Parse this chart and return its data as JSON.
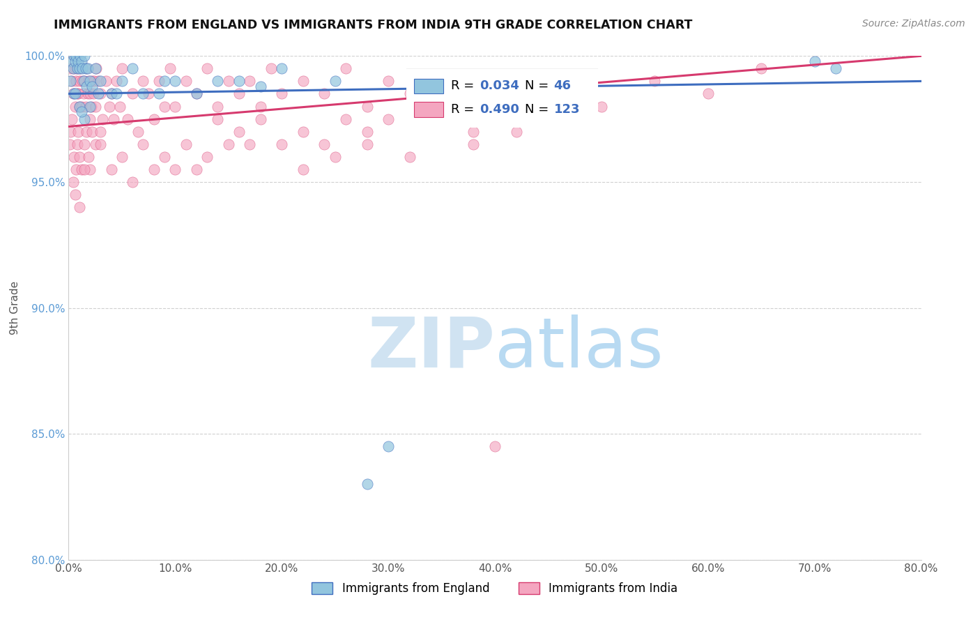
{
  "title": "IMMIGRANTS FROM ENGLAND VS IMMIGRANTS FROM INDIA 9TH GRADE CORRELATION CHART",
  "source": "Source: ZipAtlas.com",
  "ylabel": "9th Grade",
  "legend_england": "Immigrants from England",
  "legend_india": "Immigrants from India",
  "r_england": 0.034,
  "n_england": 46,
  "r_india": 0.49,
  "n_india": 123,
  "xlim": [
    0.0,
    80.0
  ],
  "ylim": [
    80.0,
    100.0
  ],
  "xticks": [
    0.0,
    10.0,
    20.0,
    30.0,
    40.0,
    50.0,
    60.0,
    70.0,
    80.0
  ],
  "yticks": [
    80.0,
    85.0,
    90.0,
    95.0,
    100.0
  ],
  "color_england": "#92c5de",
  "color_india": "#f4a6c0",
  "trendline_england": "#3e6dbf",
  "trendline_india": "#d63a6e",
  "background_color": "#ffffff",
  "watermark_color": "#c8dff0",
  "tick_color_y": "#5b9bd5",
  "tick_color_x": "#555555",
  "grid_color": "#d0d0d0",
  "title_color": "#111111",
  "source_color": "#888888",
  "ylabel_color": "#555555"
}
